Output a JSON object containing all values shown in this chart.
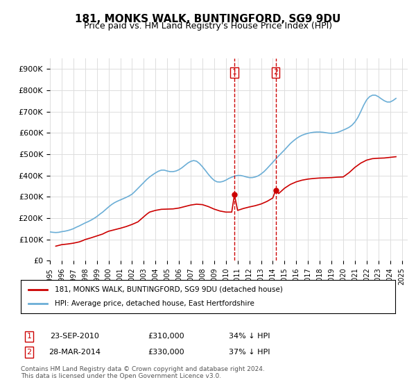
{
  "title": "181, MONKS WALK, BUNTINGFORD, SG9 9DU",
  "subtitle": "Price paid vs. HM Land Registry's House Price Index (HPI)",
  "ylabel_ticks": [
    "£0",
    "£100K",
    "£200K",
    "£300K",
    "£400K",
    "£500K",
    "£600K",
    "£700K",
    "£800K",
    "£900K"
  ],
  "ytick_values": [
    0,
    100000,
    200000,
    300000,
    400000,
    500000,
    600000,
    700000,
    800000,
    900000
  ],
  "ylim": [
    0,
    950000
  ],
  "xlim_start": 1995.0,
  "xlim_end": 2025.5,
  "xtick_years": [
    1995,
    1996,
    1997,
    1998,
    1999,
    2000,
    2001,
    2002,
    2003,
    2004,
    2005,
    2006,
    2007,
    2008,
    2009,
    2010,
    2011,
    2012,
    2013,
    2014,
    2015,
    2016,
    2017,
    2018,
    2019,
    2020,
    2021,
    2022,
    2023,
    2024,
    2025
  ],
  "hpi_color": "#6baed6",
  "price_color": "#cc0000",
  "marker_color": "#cc0000",
  "vline_color": "#cc0000",
  "background_color": "#ffffff",
  "grid_color": "#dddddd",
  "legend_label_price": "181, MONKS WALK, BUNTINGFORD, SG9 9DU (detached house)",
  "legend_label_hpi": "HPI: Average price, detached house, East Hertfordshire",
  "sale1_x": 2010.73,
  "sale1_y": 310000,
  "sale1_label": "1",
  "sale2_x": 2014.24,
  "sale2_y": 330000,
  "sale2_label": "2",
  "table_row1": [
    "1",
    "23-SEP-2010",
    "£310,000",
    "34% ↓ HPI"
  ],
  "table_row2": [
    "2",
    "28-MAR-2014",
    "£330,000",
    "37% ↓ HPI"
  ],
  "footer": "Contains HM Land Registry data © Crown copyright and database right 2024.\nThis data is licensed under the Open Government Licence v3.0.",
  "title_fontsize": 11,
  "subtitle_fontsize": 9,
  "hpi_data_x": [
    1995.0,
    1995.25,
    1995.5,
    1995.75,
    1996.0,
    1996.25,
    1996.5,
    1996.75,
    1997.0,
    1997.25,
    1997.5,
    1997.75,
    1998.0,
    1998.25,
    1998.5,
    1998.75,
    1999.0,
    1999.25,
    1999.5,
    1999.75,
    2000.0,
    2000.25,
    2000.5,
    2000.75,
    2001.0,
    2001.25,
    2001.5,
    2001.75,
    2002.0,
    2002.25,
    2002.5,
    2002.75,
    2003.0,
    2003.25,
    2003.5,
    2003.75,
    2004.0,
    2004.25,
    2004.5,
    2004.75,
    2005.0,
    2005.25,
    2005.5,
    2005.75,
    2006.0,
    2006.25,
    2006.5,
    2006.75,
    2007.0,
    2007.25,
    2007.5,
    2007.75,
    2008.0,
    2008.25,
    2008.5,
    2008.75,
    2009.0,
    2009.25,
    2009.5,
    2009.75,
    2010.0,
    2010.25,
    2010.5,
    2010.75,
    2011.0,
    2011.25,
    2011.5,
    2011.75,
    2012.0,
    2012.25,
    2012.5,
    2012.75,
    2013.0,
    2013.25,
    2013.5,
    2013.75,
    2014.0,
    2014.25,
    2014.5,
    2014.75,
    2015.0,
    2015.25,
    2015.5,
    2015.75,
    2016.0,
    2016.25,
    2016.5,
    2016.75,
    2017.0,
    2017.25,
    2017.5,
    2017.75,
    2018.0,
    2018.25,
    2018.5,
    2018.75,
    2019.0,
    2019.25,
    2019.5,
    2019.75,
    2020.0,
    2020.25,
    2020.5,
    2020.75,
    2021.0,
    2021.25,
    2021.5,
    2021.75,
    2022.0,
    2022.25,
    2022.5,
    2022.75,
    2023.0,
    2023.25,
    2023.5,
    2023.75,
    2024.0,
    2024.25,
    2024.5
  ],
  "hpi_data_y": [
    135000,
    133000,
    132000,
    133000,
    136000,
    138000,
    141000,
    145000,
    150000,
    157000,
    163000,
    170000,
    177000,
    183000,
    190000,
    198000,
    207000,
    218000,
    228000,
    240000,
    252000,
    263000,
    272000,
    279000,
    285000,
    291000,
    297000,
    304000,
    312000,
    325000,
    339000,
    353000,
    367000,
    381000,
    393000,
    403000,
    412000,
    420000,
    425000,
    425000,
    421000,
    418000,
    418000,
    421000,
    427000,
    436000,
    447000,
    458000,
    466000,
    470000,
    467000,
    456000,
    441000,
    424000,
    406000,
    390000,
    377000,
    370000,
    369000,
    372000,
    378000,
    386000,
    392000,
    397000,
    400000,
    400000,
    397000,
    393000,
    390000,
    390000,
    393000,
    398000,
    407000,
    418000,
    432000,
    447000,
    462000,
    477000,
    492000,
    506000,
    520000,
    535000,
    550000,
    562000,
    573000,
    582000,
    589000,
    594000,
    598000,
    601000,
    603000,
    604000,
    604000,
    603000,
    601000,
    599000,
    598000,
    599000,
    602000,
    607000,
    613000,
    619000,
    626000,
    636000,
    651000,
    672000,
    700000,
    730000,
    755000,
    770000,
    777000,
    777000,
    770000,
    760000,
    751000,
    745000,
    745000,
    752000,
    762000
  ],
  "price_data_x": [
    1995.5,
    1996.0,
    1996.5,
    1997.0,
    1997.5,
    1997.75,
    1998.0,
    1998.5,
    1999.0,
    1999.5,
    1999.75,
    2000.0,
    2000.5,
    2001.0,
    2001.5,
    2002.0,
    2002.5,
    2002.75,
    2003.0,
    2003.25,
    2003.5,
    2004.0,
    2004.5,
    2005.0,
    2005.5,
    2006.0,
    2006.5,
    2007.0,
    2007.5,
    2008.0,
    2008.5,
    2009.0,
    2009.5,
    2010.0,
    2010.5,
    2010.73,
    2011.0,
    2011.5,
    2012.0,
    2012.5,
    2013.0,
    2013.5,
    2014.0,
    2014.24,
    2014.5,
    2015.0,
    2015.5,
    2016.0,
    2016.5,
    2017.0,
    2017.5,
    2018.0,
    2018.5,
    2019.0,
    2019.5,
    2020.0,
    2020.5,
    2021.0,
    2021.5,
    2022.0,
    2022.5,
    2023.0,
    2023.5,
    2024.0,
    2024.5
  ],
  "price_data_y": [
    68000,
    75000,
    78000,
    82000,
    88000,
    93000,
    99000,
    107000,
    116000,
    125000,
    132000,
    138000,
    145000,
    152000,
    160000,
    170000,
    182000,
    194000,
    206000,
    218000,
    228000,
    236000,
    241000,
    242000,
    243000,
    247000,
    254000,
    261000,
    265000,
    263000,
    254000,
    242000,
    233000,
    228000,
    228000,
    310000,
    236000,
    245000,
    252000,
    258000,
    266000,
    278000,
    294000,
    330000,
    315000,
    340000,
    358000,
    370000,
    378000,
    383000,
    386000,
    388000,
    389000,
    390000,
    392000,
    393000,
    413000,
    438000,
    458000,
    472000,
    479000,
    481000,
    482000,
    485000,
    488000
  ]
}
